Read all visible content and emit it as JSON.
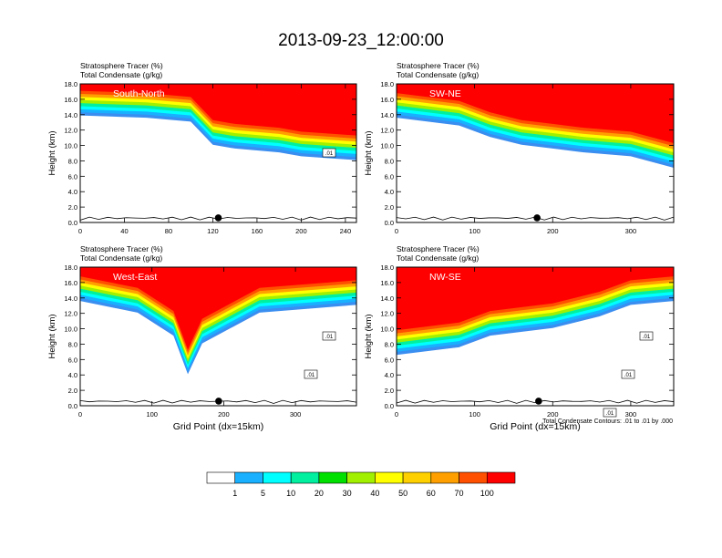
{
  "figure": {
    "title": "2013-09-23_12:00:00",
    "contour_note": "Total Condensate Contours: .01 to .01 by .000"
  },
  "colorbar": {
    "labels": [
      "1",
      "5",
      "10",
      "20",
      "30",
      "40",
      "50",
      "60",
      "70",
      "100"
    ],
    "colors": [
      "#ffffff",
      "#3a8ef0",
      "#18b0ff",
      "#00ffff",
      "#00f0a0",
      "#00e000",
      "#a0f000",
      "#ffff00",
      "#ffd000",
      "#ffa000",
      "#ff5000",
      "#ff0000"
    ]
  },
  "chart_data": [
    {
      "type": "contour-cross-section",
      "panel_label": "South-North",
      "title_line1": "Stratosphere Tracer   (%)",
      "title_line2": "Total Condensate   (g/kg)",
      "ylabel": "Height (km)",
      "xlabel": "",
      "ylim": [
        0,
        18
      ],
      "yticks": [
        "0.0",
        "2.0",
        "4.0",
        "6.0",
        "8.0",
        "10.0",
        "12.0",
        "14.0",
        "16.0",
        "18.0"
      ],
      "xlim": [
        0,
        250
      ],
      "xticks": [
        0,
        40,
        80,
        120,
        160,
        200,
        240
      ],
      "xtick_labels": [
        "0",
        "40",
        "80",
        "120",
        "160",
        "200",
        "240"
      ],
      "tropopause_km": [
        [
          0,
          14.8
        ],
        [
          60,
          14.5
        ],
        [
          100,
          14
        ],
        [
          120,
          11
        ],
        [
          140,
          10.5
        ],
        [
          180,
          10
        ],
        [
          200,
          9.5
        ],
        [
          250,
          9
        ]
      ],
      "marker_x": 125,
      "contour_labels": [
        ".01"
      ]
    },
    {
      "type": "contour-cross-section",
      "panel_label": "SW-NE",
      "title_line1": "Stratosphere Tracer   (%)",
      "title_line2": "Total Condensate   (g/kg)",
      "ylabel": "Height (km)",
      "xlabel": "",
      "ylim": [
        0,
        18
      ],
      "yticks": [
        "0.0",
        "2.0",
        "4.0",
        "6.0",
        "8.0",
        "10.0",
        "12.0",
        "14.0",
        "16.0",
        "18.0"
      ],
      "xlim": [
        0,
        355
      ],
      "xticks": [
        0,
        100,
        200,
        300
      ],
      "xtick_labels": [
        "0",
        "100",
        "200",
        "300"
      ],
      "tropopause_km": [
        [
          0,
          14.5
        ],
        [
          80,
          13.5
        ],
        [
          120,
          12
        ],
        [
          160,
          11
        ],
        [
          200,
          10.5
        ],
        [
          240,
          10
        ],
        [
          300,
          9.5
        ],
        [
          355,
          8
        ]
      ],
      "marker_x": 180,
      "contour_labels": []
    },
    {
      "type": "contour-cross-section",
      "panel_label": "West-East",
      "title_line1": "Stratosphere Tracer   (%)",
      "title_line2": "Total Condensate   (g/kg)",
      "ylabel": "Height (km)",
      "xlabel": "Grid Point (dx=15km)",
      "ylim": [
        0,
        18
      ],
      "yticks": [
        "0.0",
        "2.0",
        "4.0",
        "6.0",
        "8.0",
        "10.0",
        "12.0",
        "14.0",
        "16.0",
        "18.0"
      ],
      "xlim": [
        0,
        385
      ],
      "xticks": [
        0,
        100,
        200,
        300
      ],
      "xtick_labels": [
        "0",
        "100",
        "200",
        "300"
      ],
      "tropopause_km": [
        [
          0,
          14.5
        ],
        [
          80,
          13
        ],
        [
          130,
          10
        ],
        [
          150,
          5
        ],
        [
          170,
          9
        ],
        [
          250,
          13
        ],
        [
          385,
          14
        ]
      ],
      "marker_x": 193,
      "contour_labels": [
        ".01",
        ".01"
      ]
    },
    {
      "type": "contour-cross-section",
      "panel_label": "NW-SE",
      "title_line1": "Stratosphere Tracer   (%)",
      "title_line2": "Total Condensate   (g/kg)",
      "ylabel": "Height (km)",
      "xlabel": "Grid Point (dx=15km)",
      "ylim": [
        0,
        18
      ],
      "yticks": [
        "0.0",
        "2.0",
        "4.0",
        "6.0",
        "8.0",
        "10.0",
        "12.0",
        "14.0",
        "16.0",
        "18.0"
      ],
      "xlim": [
        0,
        355
      ],
      "xticks": [
        0,
        100,
        200,
        300
      ],
      "xtick_labels": [
        "0",
        "100",
        "200",
        "300"
      ],
      "tropopause_km": [
        [
          0,
          7.5
        ],
        [
          80,
          8.5
        ],
        [
          120,
          10
        ],
        [
          200,
          11
        ],
        [
          260,
          12.5
        ],
        [
          300,
          14
        ],
        [
          355,
          14.5
        ]
      ],
      "marker_x": 182,
      "contour_labels": [
        ".01",
        ".01",
        ".01"
      ]
    }
  ]
}
